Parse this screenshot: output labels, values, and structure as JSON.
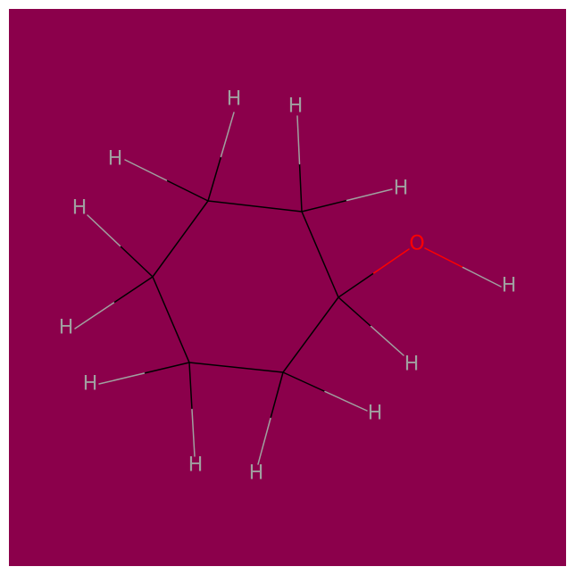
{
  "molecule": {
    "formula": "C6H12O",
    "colors": {
      "background": "#8B004B",
      "frame": "#ffffff",
      "carbon_bond": "#000000",
      "hydrogen": "#a0a0a0",
      "oxygen": "#ff0000"
    },
    "atom_labels": {
      "H": "H",
      "O": "O"
    }
  }
}
